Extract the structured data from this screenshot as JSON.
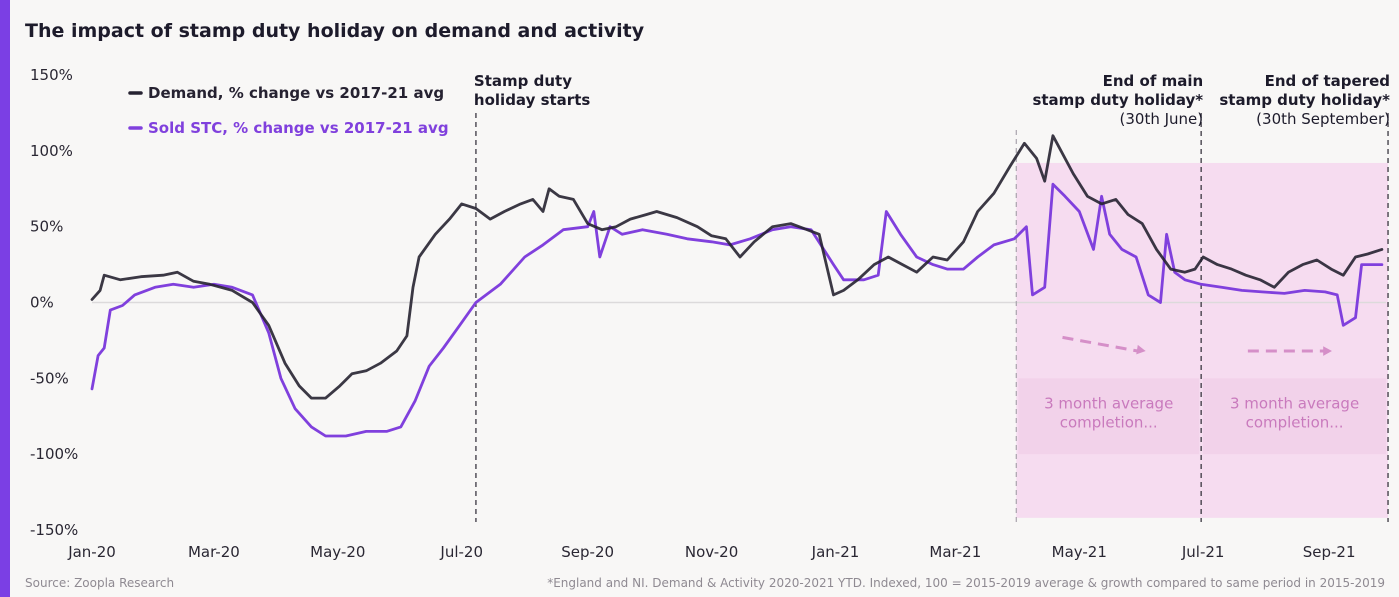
{
  "title": "The impact of stamp duty holiday on demand and activity",
  "source": "Source: Zoopla Research",
  "footnote": "*England and NI. Demand & Activity 2020-2021 YTD. Indexed, 100 = 2015-2019 average & growth compared to same period in 2015-2019",
  "colors": {
    "demand": "#262231",
    "sold": "#8040dd",
    "accent": "#7b3fe4",
    "shade": "#f6dcf0",
    "shade_box": "#f2d2ea",
    "shade_text": "#c97abd",
    "grid": "#dcdadb"
  },
  "chart_data": {
    "type": "line",
    "title": "The impact of stamp duty holiday on demand and activity",
    "y_ticks": [
      "150%",
      "100%",
      "50%",
      "0%",
      "-50%",
      "-100%",
      "-150%"
    ],
    "y_tick_values": [
      150,
      100,
      50,
      0,
      -50,
      -100,
      -150
    ],
    "ylim": [
      -150,
      150
    ],
    "x_ticks": [
      "Jan-20",
      "Mar-20",
      "May-20",
      "Jul-20",
      "Sep-20",
      "Nov-20",
      "Jan-21",
      "Mar-21",
      "May-21",
      "Jul-21",
      "Sep-21"
    ],
    "x_tick_dates": [
      "2020-01-01",
      "2020-03-01",
      "2020-05-01",
      "2020-07-01",
      "2020-09-01",
      "2020-11-01",
      "2021-01-01",
      "2021-03-01",
      "2021-05-01",
      "2021-07-01",
      "2021-09-01"
    ],
    "xlim": [
      "2020-01-01",
      "2021-09-29"
    ],
    "legend_position": "top-left",
    "series": [
      {
        "name": "Demand, % change vs 2017-21 avg",
        "points": [
          [
            "2020-01-01",
            2
          ],
          [
            "2020-01-05",
            8
          ],
          [
            "2020-01-07",
            18
          ],
          [
            "2020-01-15",
            15
          ],
          [
            "2020-01-25",
            17
          ],
          [
            "2020-02-05",
            18
          ],
          [
            "2020-02-12",
            20
          ],
          [
            "2020-02-20",
            14
          ],
          [
            "2020-02-28",
            12
          ],
          [
            "2020-03-10",
            8
          ],
          [
            "2020-03-20",
            0
          ],
          [
            "2020-03-28",
            -15
          ],
          [
            "2020-04-05",
            -40
          ],
          [
            "2020-04-12",
            -55
          ],
          [
            "2020-04-18",
            -63
          ],
          [
            "2020-04-25",
            -63
          ],
          [
            "2020-05-02",
            -55
          ],
          [
            "2020-05-08",
            -47
          ],
          [
            "2020-05-15",
            -45
          ],
          [
            "2020-05-22",
            -40
          ],
          [
            "2020-05-30",
            -32
          ],
          [
            "2020-06-04",
            -22
          ],
          [
            "2020-06-07",
            10
          ],
          [
            "2020-06-10",
            30
          ],
          [
            "2020-06-18",
            45
          ],
          [
            "2020-06-25",
            55
          ],
          [
            "2020-07-01",
            65
          ],
          [
            "2020-07-08",
            62
          ],
          [
            "2020-07-15",
            55
          ],
          [
            "2020-07-22",
            60
          ],
          [
            "2020-07-30",
            65
          ],
          [
            "2020-08-05",
            68
          ],
          [
            "2020-08-10",
            60
          ],
          [
            "2020-08-13",
            75
          ],
          [
            "2020-08-18",
            70
          ],
          [
            "2020-08-25",
            68
          ],
          [
            "2020-09-01",
            52
          ],
          [
            "2020-09-08",
            48
          ],
          [
            "2020-09-15",
            50
          ],
          [
            "2020-09-22",
            55
          ],
          [
            "2020-09-30",
            58
          ],
          [
            "2020-10-05",
            60
          ],
          [
            "2020-10-15",
            56
          ],
          [
            "2020-10-25",
            50
          ],
          [
            "2020-11-01",
            44
          ],
          [
            "2020-11-08",
            42
          ],
          [
            "2020-11-15",
            30
          ],
          [
            "2020-11-22",
            40
          ],
          [
            "2020-12-01",
            50
          ],
          [
            "2020-12-10",
            52
          ],
          [
            "2020-12-18",
            48
          ],
          [
            "2020-12-24",
            45
          ],
          [
            "2020-12-31",
            5
          ],
          [
            "2021-01-05",
            8
          ],
          [
            "2021-01-12",
            15
          ],
          [
            "2021-01-20",
            25
          ],
          [
            "2021-01-27",
            30
          ],
          [
            "2021-02-03",
            25
          ],
          [
            "2021-02-10",
            20
          ],
          [
            "2021-02-18",
            30
          ],
          [
            "2021-02-25",
            28
          ],
          [
            "2021-03-05",
            40
          ],
          [
            "2021-03-12",
            60
          ],
          [
            "2021-03-20",
            72
          ],
          [
            "2021-03-28",
            90
          ],
          [
            "2021-04-04",
            105
          ],
          [
            "2021-04-10",
            95
          ],
          [
            "2021-04-14",
            80
          ],
          [
            "2021-04-18",
            110
          ],
          [
            "2021-04-22",
            100
          ],
          [
            "2021-04-28",
            85
          ],
          [
            "2021-05-05",
            70
          ],
          [
            "2021-05-12",
            65
          ],
          [
            "2021-05-19",
            68
          ],
          [
            "2021-05-25",
            58
          ],
          [
            "2021-06-01",
            52
          ],
          [
            "2021-06-08",
            35
          ],
          [
            "2021-06-15",
            22
          ],
          [
            "2021-06-22",
            20
          ],
          [
            "2021-06-27",
            22
          ],
          [
            "2021-07-01",
            30
          ],
          [
            "2021-07-08",
            25
          ],
          [
            "2021-07-15",
            22
          ],
          [
            "2021-07-22",
            18
          ],
          [
            "2021-07-29",
            15
          ],
          [
            "2021-08-05",
            10
          ],
          [
            "2021-08-12",
            20
          ],
          [
            "2021-08-19",
            25
          ],
          [
            "2021-08-26",
            28
          ],
          [
            "2021-09-02",
            22
          ],
          [
            "2021-09-08",
            18
          ],
          [
            "2021-09-14",
            30
          ],
          [
            "2021-09-20",
            32
          ],
          [
            "2021-09-27",
            35
          ]
        ]
      },
      {
        "name": "Sold STC, % change vs 2017-21 avg",
        "points": [
          [
            "2020-01-01",
            -57
          ],
          [
            "2020-01-04",
            -35
          ],
          [
            "2020-01-07",
            -30
          ],
          [
            "2020-01-10",
            -5
          ],
          [
            "2020-01-16",
            -2
          ],
          [
            "2020-01-22",
            5
          ],
          [
            "2020-02-01",
            10
          ],
          [
            "2020-02-10",
            12
          ],
          [
            "2020-02-20",
            10
          ],
          [
            "2020-03-01",
            12
          ],
          [
            "2020-03-10",
            10
          ],
          [
            "2020-03-20",
            5
          ],
          [
            "2020-03-28",
            -20
          ],
          [
            "2020-04-03",
            -50
          ],
          [
            "2020-04-10",
            -70
          ],
          [
            "2020-04-18",
            -82
          ],
          [
            "2020-04-25",
            -88
          ],
          [
            "2020-05-05",
            -88
          ],
          [
            "2020-05-15",
            -85
          ],
          [
            "2020-05-25",
            -85
          ],
          [
            "2020-06-01",
            -82
          ],
          [
            "2020-06-08",
            -65
          ],
          [
            "2020-06-15",
            -42
          ],
          [
            "2020-06-22",
            -30
          ],
          [
            "2020-06-30",
            -15
          ],
          [
            "2020-07-08",
            0
          ],
          [
            "2020-07-20",
            12
          ],
          [
            "2020-08-01",
            30
          ],
          [
            "2020-08-10",
            38
          ],
          [
            "2020-08-20",
            48
          ],
          [
            "2020-09-01",
            50
          ],
          [
            "2020-09-04",
            60
          ],
          [
            "2020-09-07",
            30
          ],
          [
            "2020-09-12",
            50
          ],
          [
            "2020-09-18",
            45
          ],
          [
            "2020-09-28",
            48
          ],
          [
            "2020-10-10",
            45
          ],
          [
            "2020-10-20",
            42
          ],
          [
            "2020-11-01",
            40
          ],
          [
            "2020-11-10",
            38
          ],
          [
            "2020-11-20",
            42
          ],
          [
            "2020-12-01",
            48
          ],
          [
            "2020-12-10",
            50
          ],
          [
            "2020-12-20",
            48
          ],
          [
            "2020-12-31",
            25
          ],
          [
            "2021-01-05",
            15
          ],
          [
            "2021-01-15",
            15
          ],
          [
            "2021-01-22",
            18
          ],
          [
            "2021-01-26",
            60
          ],
          [
            "2021-02-02",
            45
          ],
          [
            "2021-02-10",
            30
          ],
          [
            "2021-02-18",
            25
          ],
          [
            "2021-02-25",
            22
          ],
          [
            "2021-03-05",
            22
          ],
          [
            "2021-03-12",
            30
          ],
          [
            "2021-03-20",
            38
          ],
          [
            "2021-03-30",
            42
          ],
          [
            "2021-04-05",
            50
          ],
          [
            "2021-04-08",
            5
          ],
          [
            "2021-04-14",
            10
          ],
          [
            "2021-04-18",
            78
          ],
          [
            "2021-04-24",
            70
          ],
          [
            "2021-05-01",
            60
          ],
          [
            "2021-05-08",
            35
          ],
          [
            "2021-05-12",
            70
          ],
          [
            "2021-05-16",
            45
          ],
          [
            "2021-05-22",
            35
          ],
          [
            "2021-05-29",
            30
          ],
          [
            "2021-06-04",
            5
          ],
          [
            "2021-06-10",
            0
          ],
          [
            "2021-06-13",
            45
          ],
          [
            "2021-06-17",
            20
          ],
          [
            "2021-06-22",
            15
          ],
          [
            "2021-06-30",
            12
          ],
          [
            "2021-07-10",
            10
          ],
          [
            "2021-07-20",
            8
          ],
          [
            "2021-07-30",
            7
          ],
          [
            "2021-08-10",
            6
          ],
          [
            "2021-08-20",
            8
          ],
          [
            "2021-08-30",
            7
          ],
          [
            "2021-09-05",
            5
          ],
          [
            "2021-09-08",
            -15
          ],
          [
            "2021-09-14",
            -10
          ],
          [
            "2021-09-17",
            25
          ],
          [
            "2021-09-27",
            25
          ]
        ]
      }
    ],
    "annotations": [
      {
        "lines": [
          "Stamp duty",
          "holiday starts"
        ],
        "date": "2020-07-08"
      },
      {
        "lines": [
          "End of main",
          "stamp duty holiday*",
          "(30th June)"
        ],
        "date": "2021-06-30"
      },
      {
        "lines": [
          "End of tapered",
          "stamp duty holiday*",
          "(30th September)"
        ],
        "date": "2021-09-30"
      }
    ],
    "shaded_periods": [
      {
        "start": "2021-03-31",
        "end": "2021-06-30",
        "label": [
          "3 month average",
          "completion..."
        ]
      },
      {
        "start": "2021-06-30",
        "end": "2021-09-30",
        "label": [
          "3 month average",
          "completion..."
        ]
      }
    ]
  }
}
